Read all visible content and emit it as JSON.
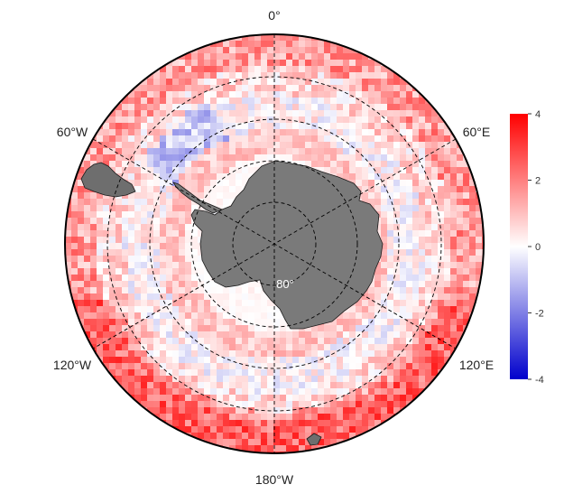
{
  "map": {
    "projection": "south-polar-stereographic",
    "longitude_labels": {
      "top": "0°",
      "top_right": "60°E",
      "bottom_right": "120°E",
      "bottom": "180°W",
      "bottom_left": "120°W",
      "top_left": "60°W"
    },
    "latitude_label": "80°",
    "land_color": "#7a7a7a",
    "grid_color": "#000000"
  },
  "colorbar": {
    "min": -4,
    "max": 4,
    "ticks": [
      "4",
      "2",
      "0",
      "-2",
      "-4"
    ],
    "colors": {
      "high": "#ff0000",
      "mid": "#ffffff",
      "low": "#0000cc"
    }
  }
}
